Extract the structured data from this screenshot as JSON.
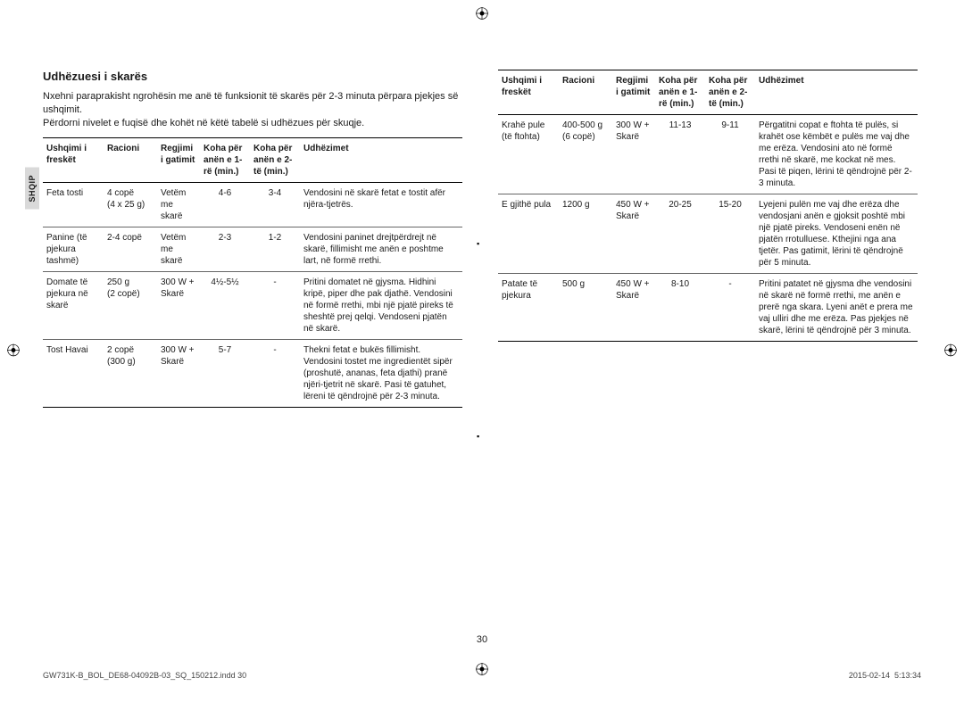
{
  "side_tab": "SHQIP",
  "heading": "Udhëzuesi i skarës",
  "intro": "Nxehni paraprakisht ngrohësin me anë të funksionit të skarës për 2-3 minuta përpara pjekjes së ushqimit.\nPërdorni nivelet e fuqisë dhe kohët në këtë tabelë si udhëzues për skuqje.",
  "headers": {
    "h1": "Ushqimi i freskët",
    "h2": "Racioni",
    "h3": "Regjimi i gatimit",
    "h4": "Koha për anën e 1-rë (min.)",
    "h5": "Koha për anën e 2-të (min.)",
    "h6": "Udhëzimet"
  },
  "left_rows": [
    {
      "food": "Feta tosti",
      "portion": "4 copë\n(4 x 25 g)",
      "mode": "Vetëm me skarë",
      "t1": "4-6",
      "t2": "3-4",
      "instr": "Vendosini në skarë fetat e tostit afër njëra-tjetrës."
    },
    {
      "food": "Panine (të pjekura tashmë)",
      "portion": "2-4 copë",
      "mode": "Vetëm me skarë",
      "t1": "2-3",
      "t2": "1-2",
      "instr": "Vendosini paninet drejtpërdrejt në skarë, fillimisht me anën e poshtme lart, në formë rrethi."
    },
    {
      "food": "Domate të pjekura në skarë",
      "portion": "250 g\n(2 copë)",
      "mode": "300 W + Skarë",
      "t1": "4½-5½",
      "t2": "-",
      "instr": "Pritini domatet në gjysma. Hidhini kripë, piper dhe pak djathë. Vendosini në formë rrethi, mbi një pjatë pireks të sheshtë prej qelqi. Vendoseni pjatën në skarë."
    },
    {
      "food": "Tost Havai",
      "portion": "2 copë\n(300 g)",
      "mode": "300 W + Skarë",
      "t1": "5-7",
      "t2": "-",
      "instr": "Thekni fetat e bukës fillimisht. Vendosini tostet me ingredientët sipër (proshutë, ananas, feta djathi) pranë njëri-tjetrit në skarë. Pasi të gatuhet, lëreni të qëndrojnë për 2-3 minuta."
    }
  ],
  "right_rows": [
    {
      "food": "Krahë pule (të ftohta)",
      "portion": "400-500 g\n(6 copë)",
      "mode": "300 W + Skarë",
      "t1": "11-13",
      "t2": "9-11",
      "instr": "Përgatitni copat e ftohta të pulës, si krahët ose këmbët e pulës me vaj dhe me erëza. Vendosini ato në formë rrethi në skarë, me kockat në mes. Pasi të piqen, lërini të qëndrojnë për 2-3 minuta."
    },
    {
      "food": "E gjithë pula",
      "portion": "1200 g",
      "mode": "450 W + Skarë",
      "t1": "20-25",
      "t2": "15-20",
      "instr": "Lyejeni pulën me vaj dhe erëza dhe vendosjani anën e gjoksit poshtë mbi një pjatë pireks. Vendoseni enën në pjatën rrotulluese. Kthejini nga ana tjetër. Pas gatimit, lërini të qëndrojnë për 5 minuta."
    },
    {
      "food": "Patate të pjekura",
      "portion": "500 g",
      "mode": "450 W + Skarë",
      "t1": "8-10",
      "t2": "-",
      "instr": "Pritini patatet në gjysma dhe vendosini në skarë në formë rrethi, me anën e prerë nga skara. Lyeni anët e prera me vaj ulliri dhe me erëza. Pas pjekjes në skarë, lërini të qëndrojnë për 3 minuta."
    }
  ],
  "pagenum": "30",
  "footer_left": "GW731K-B_BOL_DE68-04092B-03_SQ_150212.indd   30",
  "footer_right": "2015-02-14   \u0016 5:13:34"
}
